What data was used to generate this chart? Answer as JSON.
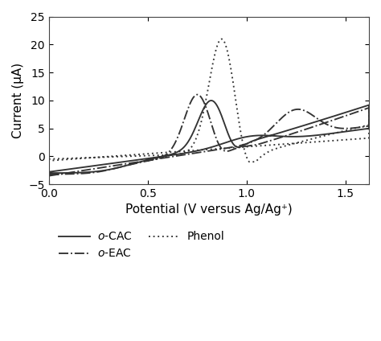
{
  "xlabel": "Potential (V versus Ag/Ag⁺)",
  "ylabel": "Current (μA)",
  "xlim": [
    0.0,
    1.62
  ],
  "ylim": [
    -5,
    25
  ],
  "xticks": [
    0.0,
    0.5,
    1.0,
    1.5
  ],
  "yticks": [
    -5,
    0,
    5,
    10,
    15,
    20,
    25
  ],
  "line_color": "#333333",
  "background_color": "#ffffff",
  "fontsize": 11
}
